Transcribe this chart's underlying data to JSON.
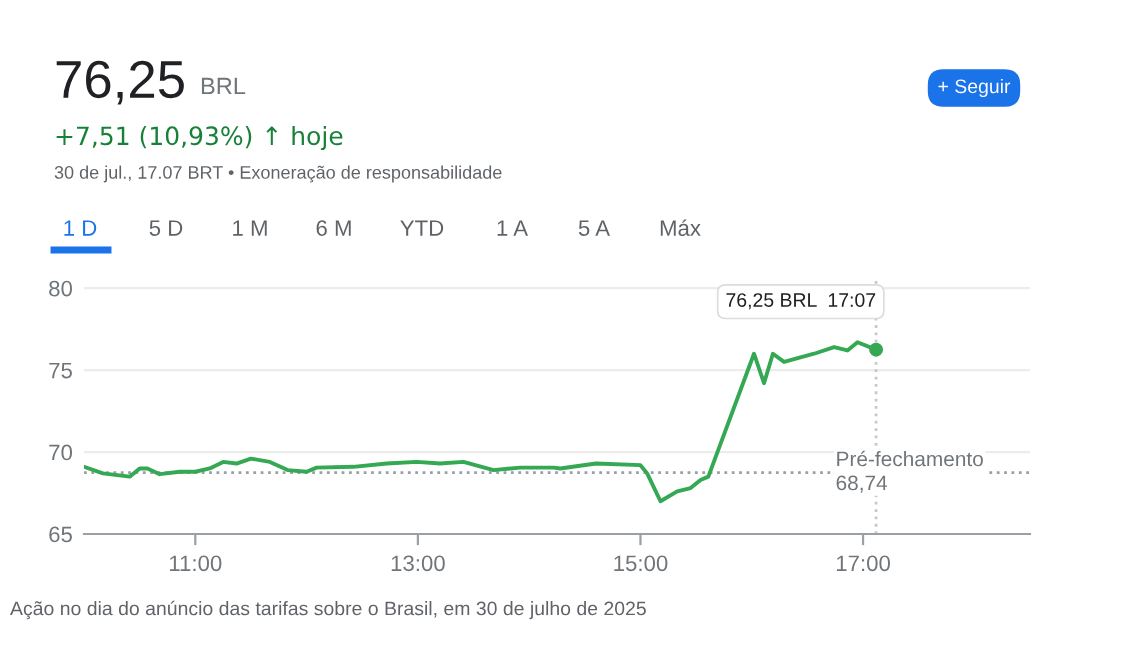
{
  "chart_data": {
    "type": "line",
    "title": "76,25",
    "subtitle": "+7,51 (10,93%) ↑ hoje",
    "annotations": [
      "BRL",
      "30 de jul., 17.07 BRT • Exoneração de responsabilidade",
      "+ Seguir",
      "1 D",
      "5 D",
      "1 M",
      "6 M",
      "YTD",
      "1 A",
      "5 A",
      "Máx",
      "Ação no dia do anúncio das tarifas sobre o Brasil, em 30 de julho de 2025",
      {
        "text": "76,25 BRL  17:07",
        "x": 17.117,
        "y": 76.25
      }
    ],
    "x": [
      10.0,
      10.17,
      10.41,
      10.5,
      10.57,
      10.68,
      10.86,
      11.0,
      11.13,
      11.25,
      11.37,
      11.5,
      11.67,
      11.83,
      12.0,
      12.09,
      12.42,
      12.72,
      12.99,
      13.2,
      13.41,
      13.68,
      13.92,
      14.22,
      14.28,
      14.6,
      15.0,
      15.06,
      15.18,
      15.33,
      15.45,
      15.54,
      15.61,
      16.02,
      16.11,
      16.19,
      16.29,
      16.56,
      16.74,
      16.86,
      16.95,
      17.117
    ],
    "series": [
      {
        "color": "#34a853",
        "values": [
          69.1,
          68.7,
          68.5,
          69.0,
          69.0,
          68.65,
          68.8,
          68.8,
          69.0,
          69.4,
          69.3,
          69.6,
          69.4,
          68.9,
          68.8,
          69.05,
          69.1,
          69.3,
          69.4,
          69.3,
          69.4,
          68.9,
          69.05,
          69.05,
          69.0,
          69.3,
          69.2,
          68.7,
          67.0,
          67.6,
          67.8,
          68.3,
          68.5,
          76.0,
          74.2,
          76.0,
          75.5,
          76.0,
          76.4,
          76.2,
          76.7,
          76.25
        ]
      }
    ],
    "xlim": [
      10,
      18.5
    ],
    "ylim": [
      65,
      80.5
    ],
    "xticks": [
      {
        "value": 11,
        "label": "11:00"
      },
      {
        "value": 13,
        "label": "13:00"
      },
      {
        "value": 15,
        "label": "15:00"
      },
      {
        "value": 17,
        "label": "17:00"
      }
    ],
    "yticks": [
      65,
      70,
      75,
      80
    ],
    "grid": "y",
    "line_style": "solid",
    "ref_lines": [
      {
        "axis": "y",
        "value": 68.74,
        "label": "Pré-fechamento\n68,74",
        "color": "#9aa0a6",
        "line_style": "dotted"
      },
      {
        "axis": "x",
        "value": 17.117,
        "label": null,
        "color": "#c8c8c8",
        "line_style": "dotted"
      }
    ]
  }
}
